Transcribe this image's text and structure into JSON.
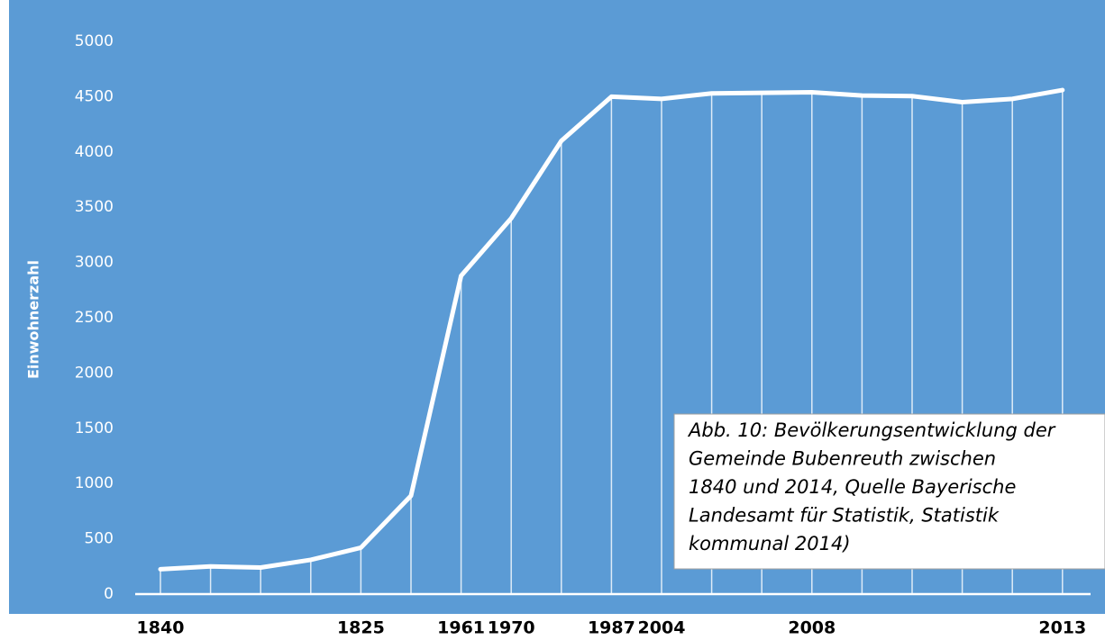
{
  "chart_data": {
    "type": "line",
    "y_label": "Einwohnerzahl",
    "categories": [
      "1840",
      null,
      null,
      null,
      "1825",
      null,
      "1961",
      "1970",
      null,
      "1987",
      "2004",
      null,
      null,
      "2008",
      null,
      null,
      null,
      null,
      "2013"
    ],
    "values": [
      225,
      250,
      240,
      310,
      420,
      890,
      2880,
      3400,
      4100,
      4500,
      4480,
      4530,
      4535,
      4540,
      4510,
      4505,
      4450,
      4480,
      4560
    ],
    "color": "#ffffff",
    "ylim": [
      0,
      5000
    ],
    "yticks": [
      0,
      500,
      1000,
      1500,
      2000,
      2500,
      3000,
      3500,
      4000,
      4500,
      5000
    ],
    "annotation": [
      "Abb. 10: Bevölkerungsentwicklung der",
      "Gemeinde Bubenreuth zwischen",
      "1840 und 2014, Quelle Bayerische",
      "Landesamt für Statistik, Statistik",
      "kommunal 2014)"
    ]
  }
}
